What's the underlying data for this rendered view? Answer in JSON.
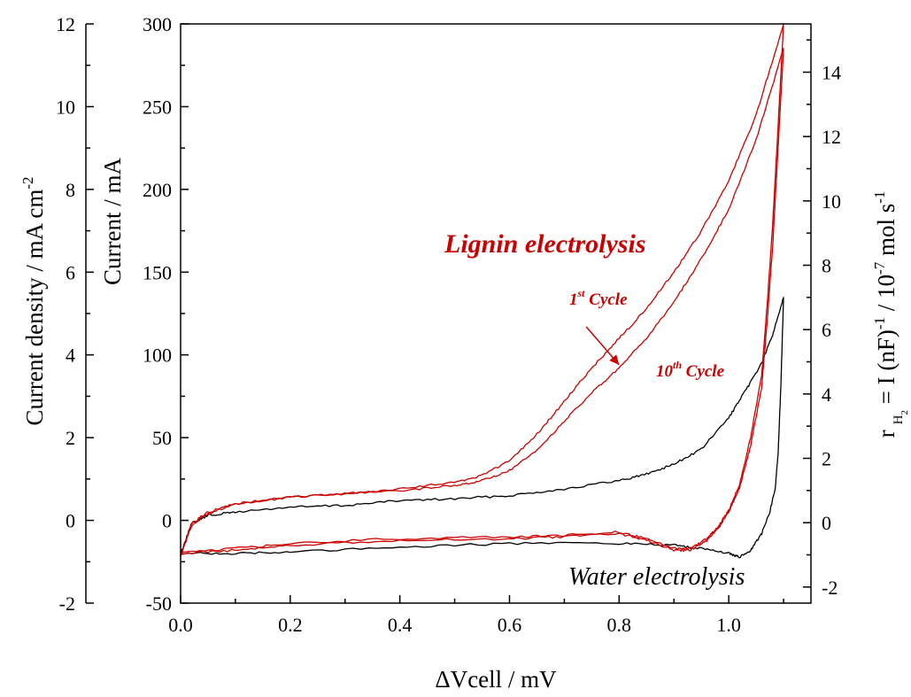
{
  "chart_data": {
    "type": "line",
    "xlabel": "ΔVcell / mV",
    "x_ticks": [
      "0.0",
      "0.2",
      "0.4",
      "0.6",
      "0.8",
      "1.0"
    ],
    "xlim": [
      0,
      1.15
    ],
    "y_axes": {
      "current": {
        "label": "Current / mA",
        "ylim": [
          -50,
          300
        ],
        "ticks": [
          "-50",
          "0",
          "50",
          "100",
          "150",
          "200",
          "250",
          "300"
        ]
      },
      "current_density": {
        "label": "Current density / mA cm",
        "label_sup": "-2",
        "ylim": [
          -2,
          12
        ],
        "ticks": [
          "-2",
          "0",
          "2",
          "4",
          "6",
          "8",
          "10",
          "12"
        ]
      },
      "h2_rate": {
        "label_parts": [
          "r",
          "H",
          "2",
          " = I (nF)",
          "-1",
          " / 10",
          "-7",
          " mol s",
          "-1"
        ],
        "ylim": [
          -2.5,
          15.5
        ],
        "ticks": [
          "-2",
          "0",
          "2",
          "4",
          "6",
          "8",
          "10",
          "12",
          "14"
        ]
      }
    },
    "annotations": {
      "lignin": "Lignin electrolysis",
      "water": "Water electrolysis",
      "first_cycle": [
        "1",
        "st",
        " Cycle"
      ],
      "tenth_cycle": [
        "10",
        "th",
        " Cycle"
      ]
    },
    "series": [
      {
        "color": "#000000",
        "forward": [
          [
            0,
            -20
          ],
          [
            0.02,
            -2
          ],
          [
            0.05,
            3
          ],
          [
            0.1,
            5
          ],
          [
            0.2,
            8
          ],
          [
            0.3,
            9
          ],
          [
            0.4,
            12
          ],
          [
            0.5,
            13
          ],
          [
            0.6,
            15
          ],
          [
            0.7,
            19
          ],
          [
            0.8,
            24
          ],
          [
            0.85,
            28
          ],
          [
            0.9,
            34
          ],
          [
            0.95,
            43
          ],
          [
            1.0,
            62
          ],
          [
            1.03,
            78
          ],
          [
            1.06,
            95
          ],
          [
            1.08,
            112
          ],
          [
            1.1,
            135
          ]
        ],
        "reverse": [
          [
            1.1,
            135
          ],
          [
            1.095,
            80
          ],
          [
            1.09,
            40
          ],
          [
            1.085,
            20
          ],
          [
            1.075,
            5
          ],
          [
            1.06,
            -8
          ],
          [
            1.04,
            -18
          ],
          [
            1.02,
            -22
          ],
          [
            1.0,
            -20
          ],
          [
            0.95,
            -17
          ],
          [
            0.9,
            -15
          ],
          [
            0.8,
            -14
          ],
          [
            0.6,
            -14
          ],
          [
            0.4,
            -16
          ],
          [
            0.2,
            -19
          ],
          [
            0.1,
            -20
          ],
          [
            0.0,
            -20
          ]
        ]
      },
      {
        "color": "#cc0000",
        "forward": [
          [
            0,
            -22
          ],
          [
            0.02,
            -3
          ],
          [
            0.05,
            4
          ],
          [
            0.1,
            10
          ],
          [
            0.2,
            14
          ],
          [
            0.3,
            16
          ],
          [
            0.4,
            18
          ],
          [
            0.5,
            21
          ],
          [
            0.55,
            24
          ],
          [
            0.6,
            30
          ],
          [
            0.65,
            42
          ],
          [
            0.7,
            60
          ],
          [
            0.75,
            77
          ],
          [
            0.8,
            92
          ],
          [
            0.85,
            110
          ],
          [
            0.9,
            132
          ],
          [
            0.95,
            158
          ],
          [
            1.0,
            188
          ],
          [
            1.05,
            230
          ],
          [
            1.1,
            285
          ]
        ],
        "reverse": [
          [
            1.1,
            285
          ],
          [
            1.09,
            225
          ],
          [
            1.08,
            165
          ],
          [
            1.07,
            120
          ],
          [
            1.06,
            80
          ],
          [
            1.04,
            45
          ],
          [
            1.02,
            20
          ],
          [
            1.0,
            5
          ],
          [
            0.98,
            -5
          ],
          [
            0.96,
            -12
          ],
          [
            0.93,
            -18
          ],
          [
            0.9,
            -18
          ],
          [
            0.85,
            -12
          ],
          [
            0.8,
            -8
          ],
          [
            0.7,
            -10
          ],
          [
            0.6,
            -11
          ],
          [
            0.4,
            -12
          ],
          [
            0.2,
            -15
          ],
          [
            0.1,
            -18
          ],
          [
            0.0,
            -20
          ]
        ]
      },
      {
        "color": "#cc0000",
        "forward": [
          [
            0,
            -22
          ],
          [
            0.02,
            -2
          ],
          [
            0.05,
            5
          ],
          [
            0.1,
            10
          ],
          [
            0.2,
            14
          ],
          [
            0.3,
            16
          ],
          [
            0.4,
            19
          ],
          [
            0.5,
            23
          ],
          [
            0.55,
            27
          ],
          [
            0.6,
            36
          ],
          [
            0.65,
            52
          ],
          [
            0.7,
            72
          ],
          [
            0.75,
            92
          ],
          [
            0.8,
            110
          ],
          [
            0.85,
            128
          ],
          [
            0.9,
            150
          ],
          [
            0.95,
            175
          ],
          [
            1.0,
            205
          ],
          [
            1.05,
            245
          ],
          [
            1.1,
            300
          ]
        ],
        "reverse": [
          [
            1.1,
            300
          ],
          [
            1.09,
            238
          ],
          [
            1.08,
            178
          ],
          [
            1.07,
            130
          ],
          [
            1.06,
            88
          ],
          [
            1.04,
            50
          ],
          [
            1.02,
            22
          ],
          [
            1.0,
            6
          ],
          [
            0.98,
            -4
          ],
          [
            0.96,
            -11
          ],
          [
            0.93,
            -17
          ],
          [
            0.9,
            -17
          ],
          [
            0.85,
            -11
          ],
          [
            0.8,
            -7
          ],
          [
            0.7,
            -9
          ],
          [
            0.6,
            -10
          ],
          [
            0.4,
            -11
          ],
          [
            0.2,
            -14
          ],
          [
            0.1,
            -17
          ],
          [
            0.0,
            -19
          ]
        ]
      }
    ],
    "arrow": {
      "from": [
        0.74,
        117
      ],
      "to": [
        0.8,
        94
      ]
    }
  }
}
